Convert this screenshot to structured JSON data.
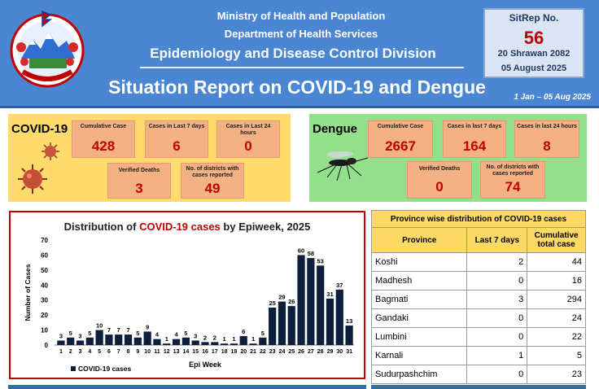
{
  "header": {
    "ministry": "Ministry of Health and Population",
    "department": "Department of Health Services",
    "division": "Epidemiology and Disease Control Division",
    "report_title": "Situation Report on COVID-19 and Dengue",
    "period": "1 Jan – 05 Aug 2025"
  },
  "sitrep": {
    "label": "SitRep No.",
    "number": "56",
    "date_np": "20 Shrawan 2082",
    "date_en": "05 August 2025"
  },
  "covid": {
    "title": "COVID-19",
    "cumulative_label": "Cumulative Case",
    "cumulative": "428",
    "last7_label": "Cases in Last 7 days",
    "last7": "6",
    "last24_label": "Cases in Last 24 hours",
    "last24": "0",
    "deaths_label": "Verified Deaths",
    "deaths": "3",
    "districts_label": "No. of districts with cases reported",
    "districts": "49"
  },
  "dengue": {
    "title": "Dengue",
    "cumulative_label": "Cumulative Case",
    "cumulative": "2667",
    "last7_label": "Cases in last 7 days",
    "last7": "164",
    "last24_label": "Cases in last 24 hours",
    "last24": "8",
    "deaths_label": "Verified Deaths",
    "deaths": "0",
    "districts_label": "No. of districts with cases reported",
    "districts": "74"
  },
  "chart_title_prefix": "Distribution of ",
  "chart_title_highlight": "COVID-19 cases",
  "chart_title_suffix": " by Epiweek, 2025",
  "chart_data": {
    "type": "bar",
    "title": "Distribution of COVID-19 cases by Epiweek, 2025",
    "xlabel": "Epi Week",
    "ylabel": "Number of Cases",
    "ylim": [
      0,
      70
    ],
    "yticks": [
      0,
      10,
      20,
      30,
      40,
      50,
      60,
      70
    ],
    "categories": [
      "1",
      "2",
      "3",
      "4",
      "5",
      "6",
      "7",
      "8",
      "9",
      "10",
      "11",
      "12",
      "13",
      "14",
      "15",
      "16",
      "17",
      "18",
      "19",
      "20",
      "21",
      "22",
      "23",
      "24",
      "25",
      "26",
      "27",
      "28",
      "29",
      "30",
      "31"
    ],
    "series": [
      {
        "name": "COVID-19 cases",
        "color": "#0d1f3c",
        "values": [
          3,
          5,
          3,
          5,
          10,
          7,
          7,
          7,
          5,
          9,
          4,
          1,
          4,
          5,
          3,
          2,
          2,
          1,
          1,
          6,
          1,
          5,
          25,
          29,
          26,
          60,
          58,
          53,
          31,
          37,
          13
        ]
      }
    ],
    "grid": false,
    "legend": "bottom-left"
  },
  "province_table": {
    "caption": "Province wise distribution of COVID-19 cases",
    "headers": [
      "Province",
      "Last 7 days",
      "Cumulative total case"
    ],
    "rows": [
      {
        "province": "Koshi",
        "last7": "2",
        "total": "44"
      },
      {
        "province": "Madhesh",
        "last7": "0",
        "total": "16"
      },
      {
        "province": "Bagmati",
        "last7": "3",
        "total": "294"
      },
      {
        "province": "Gandaki",
        "last7": "0",
        "total": "24"
      },
      {
        "province": "Lumbini",
        "last7": "0",
        "total": "22"
      },
      {
        "province": "Karnali",
        "last7": "1",
        "total": "5"
      },
      {
        "province": "Sudurpashchim",
        "last7": "0",
        "total": "23"
      }
    ]
  }
}
